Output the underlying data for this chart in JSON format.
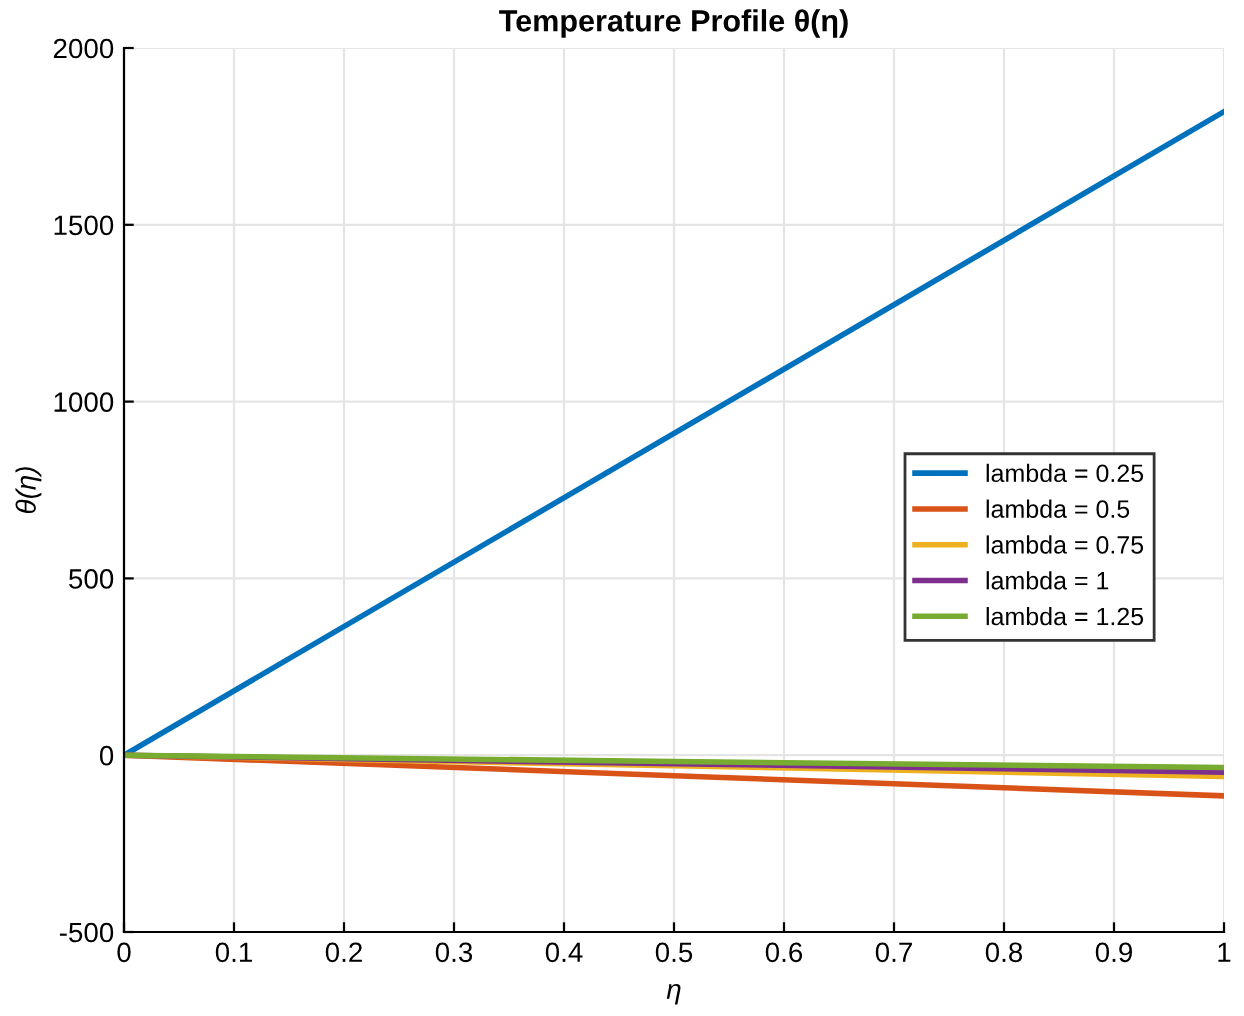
{
  "chart_data": {
    "type": "line",
    "title": "Temperature Profile θ(η)",
    "xlabel": "η",
    "ylabel": "θ(η)",
    "x": [
      0,
      0.5,
      1
    ],
    "series": [
      {
        "name": "lambda = 0.25",
        "color": "#0072bd",
        "values": [
          0,
          910,
          1820
        ]
      },
      {
        "name": "lambda = 0.5",
        "color": "#d95319",
        "values": [
          0,
          -58,
          -115
        ]
      },
      {
        "name": "lambda = 0.75",
        "color": "#edb120",
        "values": [
          0,
          -30,
          -60
        ]
      },
      {
        "name": "lambda = 1",
        "color": "#7e2f8e",
        "values": [
          0,
          -24,
          -48
        ]
      },
      {
        "name": "lambda = 1.25",
        "color": "#77ac30",
        "values": [
          0,
          -18,
          -35
        ]
      }
    ],
    "xlim": [
      0,
      1
    ],
    "ylim": [
      -500,
      2000
    ],
    "xticks": [
      0,
      0.1,
      0.2,
      0.3,
      0.4,
      0.5,
      0.6,
      0.7,
      0.8,
      0.9,
      1
    ],
    "yticks": [
      -500,
      0,
      500,
      1000,
      1500,
      2000
    ],
    "grid": true,
    "legend": "right",
    "line_style": "solid",
    "marker": "none"
  }
}
